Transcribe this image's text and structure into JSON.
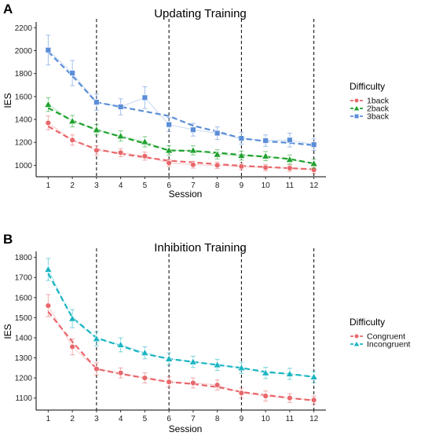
{
  "chart_data": [
    {
      "panel": "A",
      "type": "line",
      "title": "Updating Training",
      "xlabel": "Session",
      "ylabel": "IES",
      "x": [
        1,
        2,
        3,
        4,
        5,
        6,
        7,
        8,
        9,
        10,
        11,
        12
      ],
      "xticks": [
        1,
        2,
        3,
        4,
        5,
        6,
        7,
        8,
        9,
        10,
        11,
        12
      ],
      "xlim": [
        0.5,
        12.5
      ],
      "yticks": [
        1000,
        1200,
        1400,
        1600,
        1800,
        2000,
        2200
      ],
      "ylim": [
        900,
        2250
      ],
      "vlines": [
        3,
        6,
        9,
        12
      ],
      "grid": false,
      "legend": {
        "title": "Difficulty",
        "placement": "right"
      },
      "series": [
        {
          "name": "1back",
          "color": "#E8676B",
          "marker": "circle",
          "values": [
            1370,
            1220,
            1130,
            1110,
            1080,
            1020,
            1005,
            1000,
            990,
            980,
            975,
            960
          ],
          "error": [
            60,
            45,
            40,
            35,
            35,
            30,
            30,
            28,
            28,
            28,
            28,
            30
          ],
          "trend": [
            1340,
            1220,
            1140,
            1100,
            1070,
            1040,
            1025,
            1010,
            995,
            985,
            975,
            965
          ]
        },
        {
          "name": "2back",
          "color": "#1FA22E",
          "marker": "triangle",
          "values": [
            1530,
            1385,
            1310,
            1255,
            1205,
            1130,
            1130,
            1095,
            1085,
            1080,
            1050,
            1015
          ],
          "error": [
            60,
            50,
            45,
            45,
            45,
            40,
            40,
            40,
            40,
            40,
            40,
            40
          ],
          "trend": [
            1500,
            1390,
            1310,
            1250,
            1190,
            1130,
            1125,
            1110,
            1090,
            1075,
            1055,
            1015
          ]
        },
        {
          "name": "3back",
          "color": "#5B8ED8",
          "marker": "square",
          "values": [
            2005,
            1805,
            1550,
            1510,
            1590,
            1355,
            1310,
            1280,
            1235,
            1215,
            1220,
            1180
          ],
          "error": [
            130,
            110,
            70,
            70,
            95,
            60,
            55,
            55,
            50,
            50,
            60,
            50
          ],
          "trend": [
            1990,
            1780,
            1550,
            1510,
            1470,
            1430,
            1345,
            1295,
            1235,
            1210,
            1195,
            1175
          ]
        }
      ]
    },
    {
      "panel": "B",
      "type": "line",
      "title": "Inhibition Training",
      "xlabel": "Session",
      "ylabel": "IES",
      "x": [
        1,
        2,
        3,
        4,
        5,
        6,
        7,
        8,
        9,
        10,
        11,
        12
      ],
      "xticks": [
        1,
        2,
        3,
        4,
        5,
        6,
        7,
        8,
        9,
        10,
        11,
        12
      ],
      "xlim": [
        0.5,
        12.5
      ],
      "yticks": [
        1100,
        1200,
        1300,
        1400,
        1500,
        1600,
        1700,
        1800
      ],
      "ylim": [
        1040,
        1830
      ],
      "vlines": [
        3,
        6,
        9,
        12
      ],
      "grid": false,
      "legend": {
        "title": "Difficulty",
        "placement": "right"
      },
      "series": [
        {
          "name": "Congruent",
          "color": "#E8676B",
          "marker": "circle",
          "values": [
            1560,
            1355,
            1245,
            1225,
            1200,
            1180,
            1175,
            1165,
            1125,
            1110,
            1100,
            1090
          ],
          "error": [
            55,
            40,
            30,
            25,
            25,
            25,
            25,
            25,
            25,
            25,
            22,
            20
          ],
          "trend": [
            1530,
            1380,
            1245,
            1220,
            1200,
            1180,
            1170,
            1155,
            1130,
            1115,
            1100,
            1088
          ]
        },
        {
          "name": "Incongruent",
          "color": "#1BB5C2",
          "marker": "triangle",
          "values": [
            1740,
            1495,
            1395,
            1365,
            1325,
            1295,
            1280,
            1265,
            1250,
            1225,
            1220,
            1205
          ],
          "error": [
            55,
            45,
            35,
            35,
            30,
            30,
            28,
            28,
            28,
            28,
            28,
            28
          ],
          "trend": [
            1720,
            1500,
            1400,
            1360,
            1320,
            1295,
            1280,
            1265,
            1250,
            1230,
            1220,
            1205
          ]
        }
      ]
    }
  ]
}
